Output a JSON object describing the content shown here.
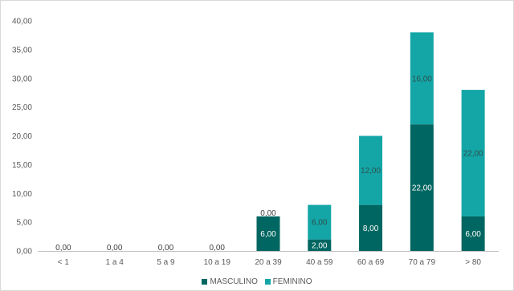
{
  "chart_data": {
    "type": "bar",
    "stacked": true,
    "title": "",
    "xlabel": "",
    "ylabel": "",
    "categories": [
      "< 1",
      "1 a 4",
      "5 a 9",
      "10 a 19",
      "20 a 39",
      "40 a 59",
      "60 a 69",
      "70 a 79",
      "> 80"
    ],
    "series": [
      {
        "name": "MASCULINO",
        "color": "#006661",
        "values": [
          0,
          0,
          0,
          0,
          6,
          2,
          8,
          22,
          6
        ],
        "labels": [
          "0,00",
          "0,00",
          "0,00",
          "0,00",
          "6,00",
          "2,00",
          "8,00",
          "22,00",
          "6,00"
        ]
      },
      {
        "name": "FEMININO",
        "color": "#14a6a6",
        "values": [
          0,
          0,
          0,
          0,
          0,
          6,
          12,
          16,
          22
        ],
        "labels": [
          "",
          "",
          "",
          "",
          "0,00",
          "6,00",
          "12,00",
          "16,00",
          "22,00"
        ]
      }
    ],
    "ylim": [
      0,
      40
    ],
    "yticks": [
      0,
      5,
      10,
      15,
      20,
      25,
      30,
      35,
      40
    ],
    "ytick_labels": [
      "0,00",
      "5,00",
      "10,00",
      "15,00",
      "20,00",
      "25,00",
      "30,00",
      "35,00",
      "40,00"
    ],
    "grid": false,
    "legend": "bottom"
  }
}
